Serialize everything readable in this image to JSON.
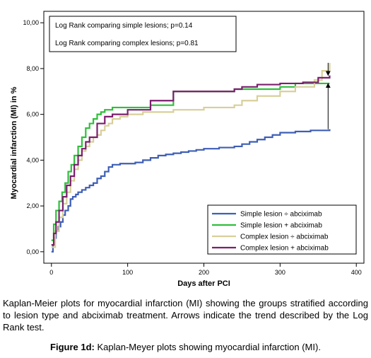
{
  "chart_data": {
    "type": "line",
    "step": true,
    "xlabel": "Days after PCI",
    "ylabel": "Myocardial infarction (MI) in %",
    "xlim": [
      -10,
      410
    ],
    "ylim": [
      -0.5,
      10.5
    ],
    "xticks": [
      0,
      100,
      200,
      300,
      400
    ],
    "yticks": [
      0,
      2,
      4,
      6,
      8,
      10
    ],
    "xtick_labels": [
      "0",
      "100",
      "200",
      "300",
      "400"
    ],
    "ytick_labels": [
      "0,00",
      "2,00",
      "4,00",
      "6,00",
      "8,00",
      "10,00"
    ],
    "grid": false,
    "legend_position": "bottom-right",
    "annotations": [
      "Log Rank comparing simple lesions; p=0.14",
      "Log Rank comparing complex lesions; p=0.81"
    ],
    "arrows": [
      {
        "x": 363,
        "from_y": 5.35,
        "to_y": 7.35
      },
      {
        "x": 363,
        "from_y": 8.25,
        "to_y": 7.7
      }
    ],
    "series": [
      {
        "name": "Simple lesion ÷ abciximab",
        "color": "#3f5fb5",
        "x": [
          0,
          2,
          4,
          6,
          9,
          12,
          15,
          18,
          22,
          25,
          28,
          32,
          35,
          40,
          45,
          50,
          55,
          60,
          65,
          70,
          75,
          80,
          90,
          100,
          110,
          120,
          130,
          140,
          150,
          160,
          170,
          180,
          190,
          200,
          220,
          240,
          250,
          260,
          270,
          280,
          290,
          300,
          320,
          340,
          365
        ],
        "y": [
          0.0,
          0.3,
          0.6,
          0.9,
          1.1,
          1.3,
          1.6,
          1.8,
          2.0,
          2.3,
          2.4,
          2.5,
          2.6,
          2.7,
          2.8,
          2.9,
          3.0,
          3.2,
          3.3,
          3.5,
          3.7,
          3.8,
          3.85,
          3.85,
          3.9,
          4.0,
          4.1,
          4.2,
          4.25,
          4.3,
          4.35,
          4.4,
          4.45,
          4.5,
          4.55,
          4.6,
          4.7,
          4.8,
          4.9,
          5.0,
          5.1,
          5.2,
          5.25,
          5.3,
          5.35
        ]
      },
      {
        "name": "Simple lesion + abciximab",
        "color": "#2fbf3b",
        "x": [
          0,
          3,
          6,
          10,
          14,
          18,
          22,
          26,
          30,
          35,
          40,
          45,
          50,
          55,
          60,
          65,
          70,
          80,
          90,
          100,
          130,
          160,
          240,
          300,
          320,
          365
        ],
        "y": [
          0.5,
          1.2,
          1.8,
          2.2,
          2.6,
          3.0,
          3.5,
          3.8,
          4.2,
          4.6,
          5.0,
          5.4,
          5.6,
          5.8,
          6.0,
          6.1,
          6.2,
          6.3,
          6.3,
          6.3,
          6.4,
          7.0,
          7.1,
          7.2,
          7.35,
          7.35
        ]
      },
      {
        "name": "Complex lesion ÷ abciximab",
        "color": "#d8cf9a",
        "x": [
          0,
          5,
          10,
          15,
          20,
          25,
          30,
          35,
          40,
          45,
          50,
          55,
          60,
          65,
          70,
          75,
          80,
          90,
          100,
          120,
          160,
          200,
          240,
          250,
          270,
          300,
          320,
          345,
          355,
          365
        ],
        "y": [
          0.2,
          0.9,
          1.5,
          2.1,
          2.6,
          3.1,
          3.6,
          4.0,
          4.4,
          4.6,
          4.8,
          5.0,
          5.1,
          5.3,
          5.5,
          5.6,
          5.8,
          5.9,
          6.0,
          6.1,
          6.2,
          6.3,
          6.4,
          6.6,
          6.8,
          7.0,
          7.2,
          7.5,
          7.9,
          8.25
        ]
      },
      {
        "name": "Complex lesion + abciximab",
        "color": "#7b1f6e",
        "x": [
          0,
          3,
          6,
          10,
          15,
          20,
          25,
          30,
          35,
          40,
          45,
          50,
          60,
          70,
          80,
          90,
          100,
          130,
          160,
          240,
          250,
          270,
          300,
          330,
          350,
          365
        ],
        "y": [
          0.3,
          0.8,
          1.3,
          1.8,
          2.4,
          2.9,
          3.3,
          3.8,
          4.2,
          4.5,
          4.8,
          5.0,
          5.6,
          5.9,
          6.0,
          6.0,
          6.2,
          6.6,
          7.0,
          7.1,
          7.2,
          7.3,
          7.35,
          7.4,
          7.6,
          7.7
        ]
      }
    ]
  },
  "caption": "Kaplan-Meier plots for myocardial infarction (MI) showing the groups stratified according to lesion type and abciximab treatment. Arrows indicate the trend described by the Log Rank test.",
  "figure_title": {
    "label": "Figure 1d:",
    "text": " Kaplan-Meyer plots showing myocardial infarction (MI)."
  }
}
